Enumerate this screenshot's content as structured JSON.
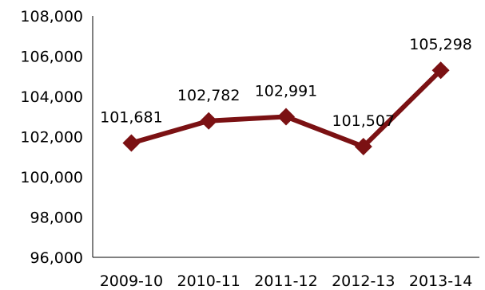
{
  "chart_data": {
    "type": "line",
    "title": "",
    "xlabel": "",
    "ylabel": "",
    "categories": [
      "2009-10",
      "2010-11",
      "2011-12",
      "2012-13",
      "2013-14"
    ],
    "series": [
      {
        "values": [
          101681,
          102782,
          102991,
          101507,
          105298
        ],
        "data_labels": [
          "101,681",
          "102,782",
          "102,991",
          "101,507",
          "105,298"
        ],
        "color": "#7b1113",
        "marker": "diamond"
      }
    ],
    "ylim": [
      96000,
      108000
    ],
    "yticks": [
      96000,
      98000,
      100000,
      102000,
      104000,
      106000,
      108000
    ],
    "ytick_labels": [
      "96,000",
      "98,000",
      "100,000",
      "102,000",
      "104,000",
      "106,000",
      "108,000"
    ],
    "grid": false,
    "legend": "none"
  }
}
